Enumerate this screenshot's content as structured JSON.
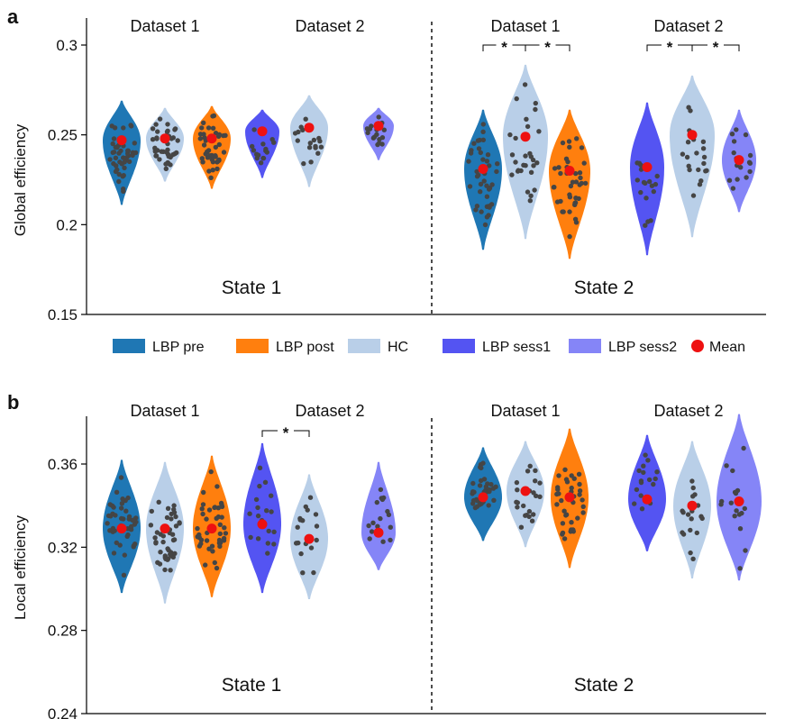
{
  "colors": {
    "lbp_pre": "#1f77b4",
    "lbp_post": "#ff7f0e",
    "hc": "#b9cfe8",
    "lbp_sess1": "#5454f2",
    "lbp_sess2": "#8585f7",
    "mean": "#ee1111",
    "dots": "#454545"
  },
  "legend": [
    {
      "label": "LBP pre",
      "key": "lbp_pre",
      "kind": "patch"
    },
    {
      "label": "LBP post",
      "key": "lbp_post",
      "kind": "patch"
    },
    {
      "label": "HC",
      "key": "hc",
      "kind": "patch"
    },
    {
      "label": "LBP sess1",
      "key": "lbp_sess1",
      "kind": "patch"
    },
    {
      "label": "LBP sess2",
      "key": "lbp_sess2",
      "kind": "patch"
    },
    {
      "label": "Mean",
      "key": "mean",
      "kind": "dot"
    }
  ],
  "chart_data": [
    {
      "panel_label": "a",
      "type": "violin",
      "ylabel": "Global efficiency",
      "ylim": [
        0.15,
        0.3
      ],
      "yticks": [
        0.15,
        0.2,
        0.25,
        0.3
      ],
      "ytick_labels": [
        "0.15",
        "0.2",
        "0.25",
        "0.3"
      ],
      "states": [
        "State 1",
        "State 2"
      ],
      "groups": [
        {
          "state": 0,
          "dataset": "Dataset 1",
          "violins": [
            {
              "series": "LBP pre",
              "key": "lbp_pre",
              "mean": 0.247,
              "min": 0.211,
              "max": 0.269,
              "width": 20,
              "n": 44
            },
            {
              "series": "HC",
              "key": "hc",
              "mean": 0.248,
              "min": 0.224,
              "max": 0.265,
              "width": 20,
              "n": 44
            },
            {
              "series": "LBP post",
              "key": "lbp_post",
              "mean": 0.248,
              "min": 0.22,
              "max": 0.266,
              "width": 20,
              "n": 44
            }
          ]
        },
        {
          "state": 0,
          "dataset": "Dataset 2",
          "violins": [
            {
              "series": "LBP sess1",
              "key": "lbp_sess1",
              "mean": 0.252,
              "min": 0.226,
              "max": 0.264,
              "width": 18,
              "n": 16
            },
            {
              "series": "HC",
              "key": "hc",
              "mean": 0.254,
              "min": 0.221,
              "max": 0.272,
              "width": 20,
              "n": 18
            },
            {
              "series": "LBP sess2",
              "key": "lbp_sess2",
              "mean": 0.255,
              "min": 0.236,
              "max": 0.265,
              "width": 16,
              "n": 16
            }
          ]
        },
        {
          "state": 1,
          "dataset": "Dataset 1",
          "violins": [
            {
              "series": "LBP pre",
              "key": "lbp_pre",
              "mean": 0.231,
              "min": 0.186,
              "max": 0.264,
              "width": 20,
              "n": 40
            },
            {
              "series": "HC",
              "key": "hc",
              "mean": 0.249,
              "min": 0.192,
              "max": 0.289,
              "width": 24,
              "n": 30
            },
            {
              "series": "LBP post",
              "key": "lbp_post",
              "mean": 0.23,
              "min": 0.181,
              "max": 0.264,
              "width": 22,
              "n": 40
            }
          ]
        },
        {
          "state": 1,
          "dataset": "Dataset 2",
          "violins": [
            {
              "series": "LBP sess1",
              "key": "lbp_sess1",
              "mean": 0.232,
              "min": 0.183,
              "max": 0.268,
              "width": 18,
              "n": 18
            },
            {
              "series": "HC",
              "key": "hc",
              "mean": 0.25,
              "min": 0.193,
              "max": 0.283,
              "width": 24,
              "n": 20
            },
            {
              "series": "LBP sess2",
              "key": "lbp_sess2",
              "mean": 0.236,
              "min": 0.207,
              "max": 0.264,
              "width": 18,
              "n": 16
            }
          ]
        }
      ],
      "significance": [
        {
          "group": 2,
          "from": 0,
          "to": 1,
          "label": "*"
        },
        {
          "group": 2,
          "from": 1,
          "to": 2,
          "label": "*"
        },
        {
          "group": 3,
          "from": 0,
          "to": 1,
          "label": "*"
        },
        {
          "group": 3,
          "from": 1,
          "to": 2,
          "label": "*"
        }
      ]
    },
    {
      "panel_label": "b",
      "type": "violin",
      "ylabel": "Local efficiency",
      "ylim": [
        0.24,
        0.38
      ],
      "yticks": [
        0.24,
        0.28,
        0.32,
        0.36
      ],
      "ytick_labels": [
        "0.24",
        "0.28",
        "0.32",
        "0.36"
      ],
      "states": [
        "State 1",
        "State 2"
      ],
      "groups": [
        {
          "state": 0,
          "dataset": "Dataset 1",
          "violins": [
            {
              "series": "LBP pre",
              "key": "lbp_pre",
              "mean": 0.329,
              "min": 0.298,
              "max": 0.362,
              "width": 20,
              "n": 44
            },
            {
              "series": "HC",
              "key": "hc",
              "mean": 0.329,
              "min": 0.293,
              "max": 0.361,
              "width": 20,
              "n": 44
            },
            {
              "series": "LBP post",
              "key": "lbp_post",
              "mean": 0.329,
              "min": 0.296,
              "max": 0.364,
              "width": 20,
              "n": 44
            }
          ]
        },
        {
          "state": 0,
          "dataset": "Dataset 2",
          "violins": [
            {
              "series": "LBP sess1",
              "key": "lbp_sess1",
              "mean": 0.331,
              "min": 0.298,
              "max": 0.37,
              "width": 20,
              "n": 18
            },
            {
              "series": "HC",
              "key": "hc",
              "mean": 0.324,
              "min": 0.295,
              "max": 0.355,
              "width": 20,
              "n": 18
            },
            {
              "series": "LBP sess2",
              "key": "lbp_sess2",
              "mean": 0.327,
              "min": 0.309,
              "max": 0.361,
              "width": 18,
              "n": 16
            }
          ]
        },
        {
          "state": 1,
          "dataset": "Dataset 1",
          "violins": [
            {
              "series": "LBP pre",
              "key": "lbp_pre",
              "mean": 0.344,
              "min": 0.323,
              "max": 0.368,
              "width": 20,
              "n": 36
            },
            {
              "series": "HC",
              "key": "hc",
              "mean": 0.347,
              "min": 0.32,
              "max": 0.371,
              "width": 20,
              "n": 24
            },
            {
              "series": "LBP post",
              "key": "lbp_post",
              "mean": 0.344,
              "min": 0.31,
              "max": 0.377,
              "width": 20,
              "n": 36
            }
          ]
        },
        {
          "state": 1,
          "dataset": "Dataset 2",
          "violins": [
            {
              "series": "LBP sess1",
              "key": "lbp_sess1",
              "mean": 0.343,
              "min": 0.318,
              "max": 0.374,
              "width": 20,
              "n": 18
            },
            {
              "series": "HC",
              "key": "hc",
              "mean": 0.34,
              "min": 0.305,
              "max": 0.371,
              "width": 20,
              "n": 18
            },
            {
              "series": "LBP sess2",
              "key": "lbp_sess2",
              "mean": 0.342,
              "min": 0.304,
              "max": 0.384,
              "width": 24,
              "n": 18
            }
          ]
        }
      ],
      "significance": [
        {
          "group": 1,
          "from": 0,
          "to": 1,
          "label": "*"
        }
      ]
    }
  ]
}
